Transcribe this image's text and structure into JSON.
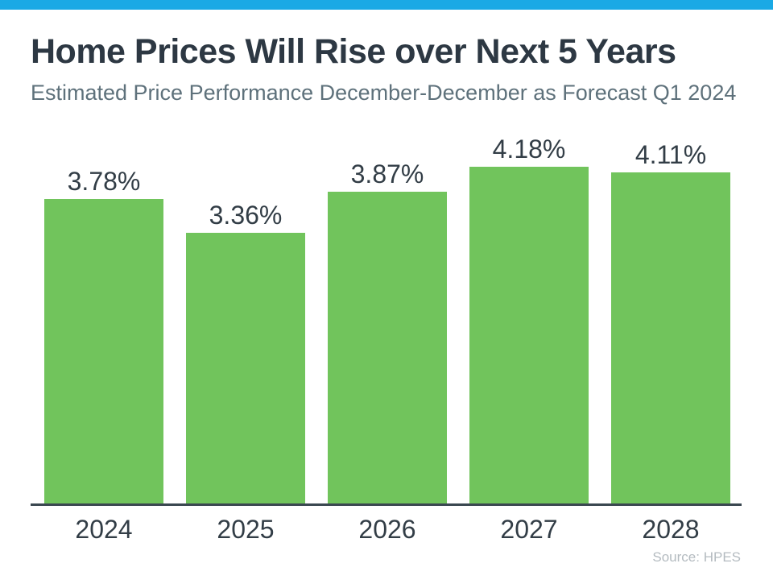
{
  "header": {
    "band_color": "#1AA9E5"
  },
  "title": "Home Prices Will Rise over Next 5 Years",
  "subtitle": "Estimated Price Performance December-December as Forecast Q1 2024",
  "source": "Source: HPES",
  "colors": {
    "accent_band": "#1AA9E5",
    "bar_fill": "#71C45C",
    "title_text": "#2D3843",
    "subtitle_text": "#5E717B",
    "label_text": "#323D46",
    "axis_line": "#3A4750",
    "source_text": "#B4BBC0",
    "background": "#FFFFFF"
  },
  "chart_data": {
    "type": "bar",
    "categories": [
      "2024",
      "2025",
      "2026",
      "2027",
      "2028"
    ],
    "values": [
      3.78,
      3.36,
      3.87,
      4.18,
      4.11
    ],
    "value_labels": [
      "3.78%",
      "3.36%",
      "3.87%",
      "4.18%",
      "4.11%"
    ],
    "title": "Home Prices Will Rise over Next 5 Years",
    "subtitle": "Estimated Price Performance December-December as Forecast Q1 2024",
    "source": "Source: HPES",
    "xlabel": "",
    "ylabel": "",
    "ylim": [
      0,
      4.5
    ],
    "grid": false,
    "legend": "none",
    "bar_color": "#71C45C",
    "data_labels_position": "above-bars",
    "baseline_axis": "x-axis only"
  }
}
